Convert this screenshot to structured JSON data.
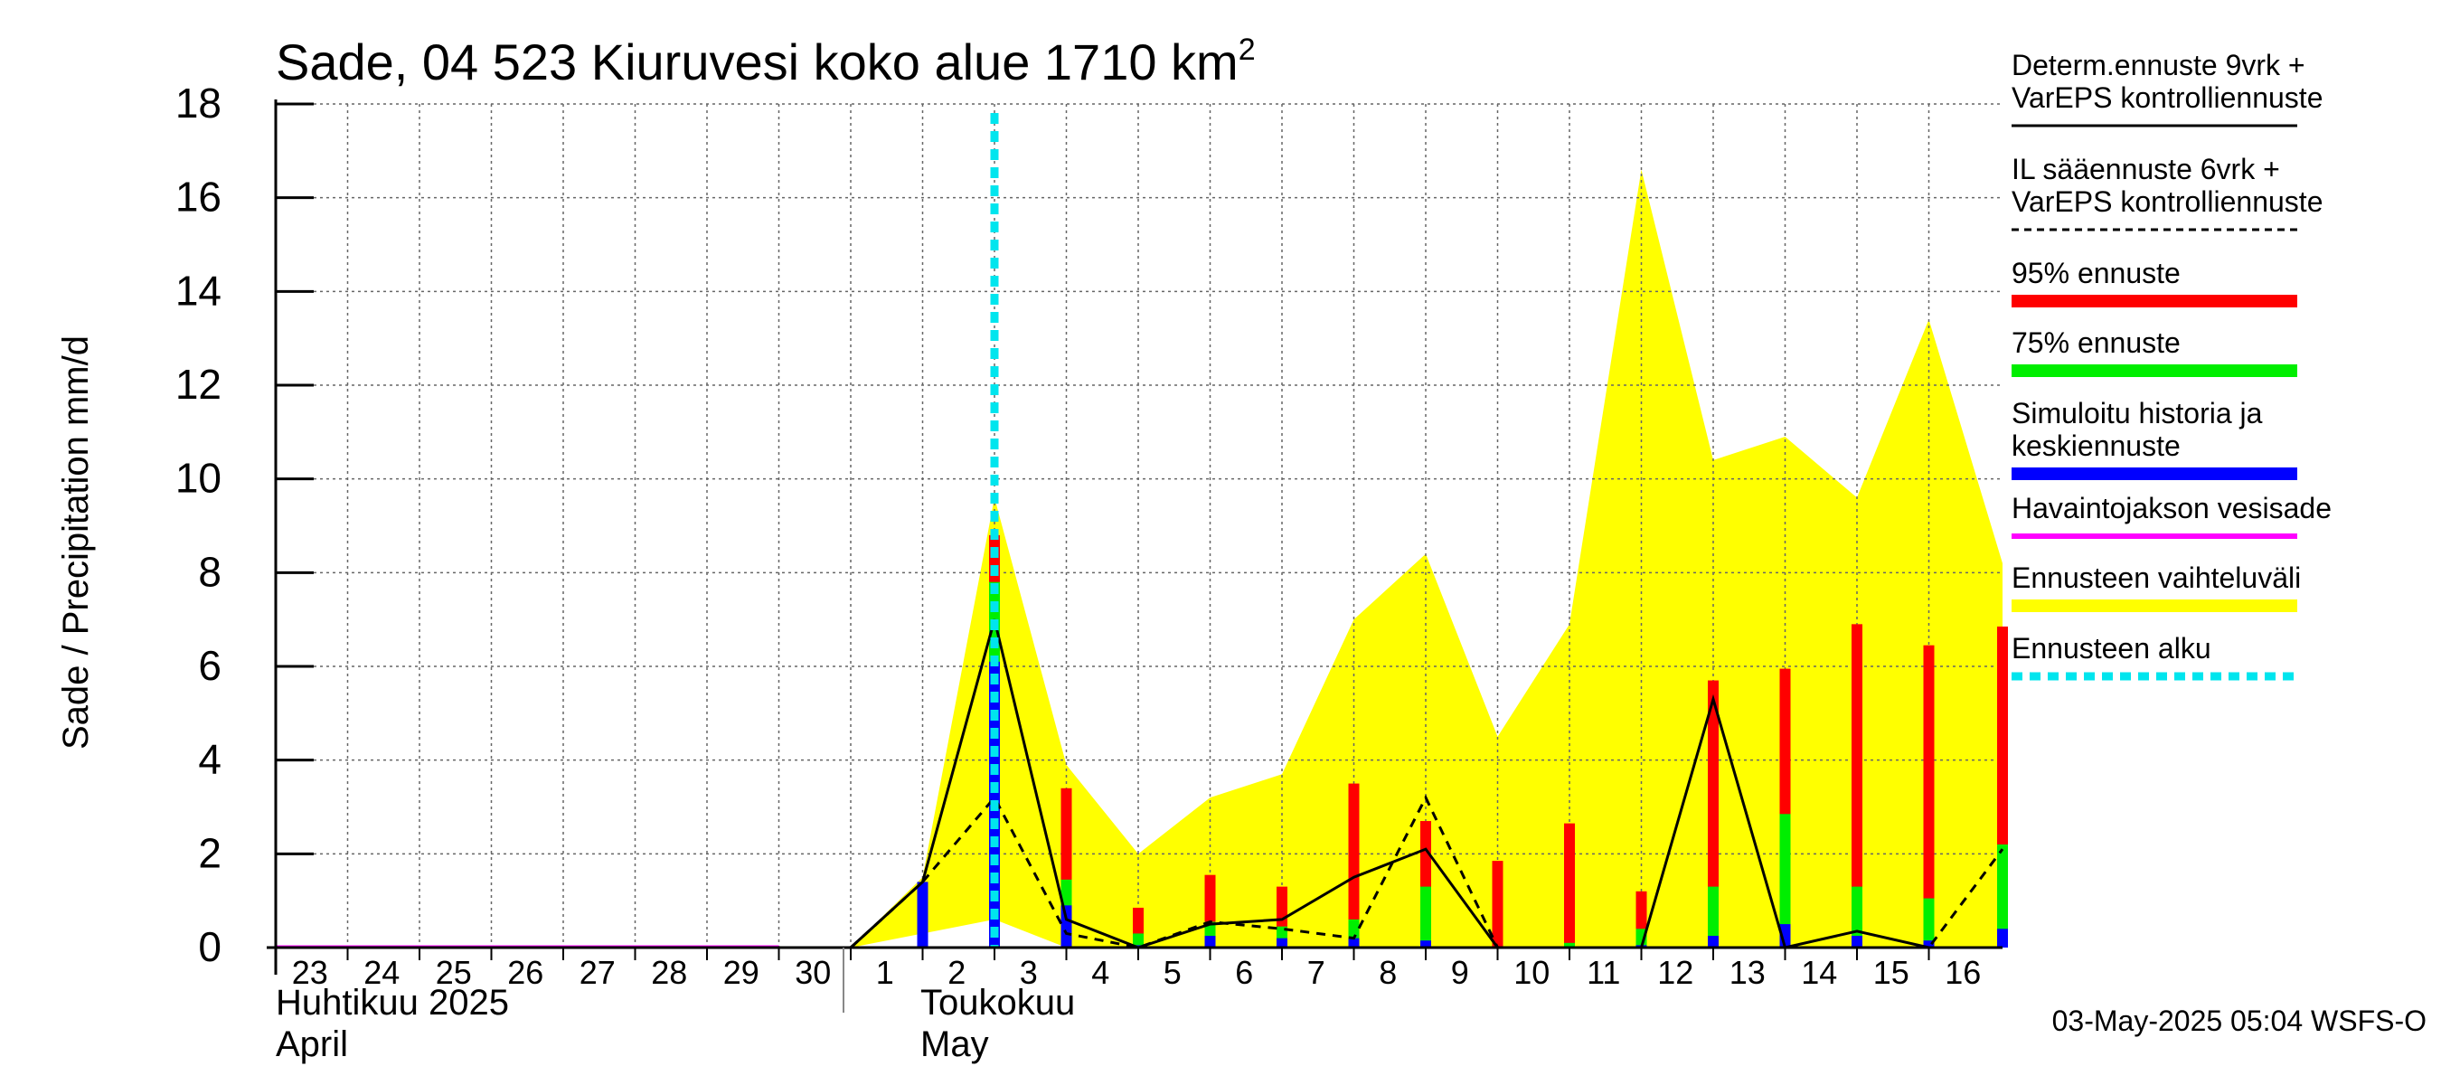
{
  "title_main": "Sade, 04 523 Kiuruvesi koko alue 1710 km",
  "title_sup": "2",
  "ylabel": "Sade / Precipitation   mm/d",
  "footer": "03-May-2025 05:04 WSFS-O",
  "months": [
    {
      "fi": "Huhtikuu  2025",
      "en": "April"
    },
    {
      "fi": "Toukokuu",
      "en": "May"
    }
  ],
  "legend": [
    {
      "label": "Determ.ennuste 9vrk +\nVarEPS kontrolliennuste",
      "color": "#000000",
      "style": "solid"
    },
    {
      "label": "IL sääennuste 6vrk  +\n  VarEPS kontrolliennuste",
      "color": "#000000",
      "style": "dashed"
    },
    {
      "label": "95% ennuste",
      "color": "#ff0000",
      "style": "thick"
    },
    {
      "label": "75% ennuste",
      "color": "#00ee00",
      "style": "thick"
    },
    {
      "label": "Simuloitu historia ja\nkeskiennuste",
      "color": "#0000ff",
      "style": "thick"
    },
    {
      "label": "Havaintojakson vesisade",
      "color": "#ff00ff",
      "style": "medium"
    },
    {
      "label": "Ennusteen vaihteluväli",
      "color": "#ffff00",
      "style": "thick"
    },
    {
      "label": "Ennusteen alku",
      "color": "#00e5ee",
      "style": "dotted"
    }
  ],
  "chart_data": {
    "type": "bar",
    "ylim": [
      0,
      18
    ],
    "yticks": [
      0,
      2,
      4,
      6,
      8,
      10,
      12,
      14,
      16,
      18
    ],
    "x_day_labels": [
      "23",
      "24",
      "25",
      "26",
      "27",
      "28",
      "29",
      "30",
      "1",
      "2",
      "3",
      "4",
      "5",
      "6",
      "7",
      "8",
      "9",
      "10",
      "11",
      "12",
      "13",
      "14",
      "15",
      "16"
    ],
    "forecast_start_day": "3",
    "grid": true,
    "colors": {
      "p95": "#ff0000",
      "p75": "#00ee00",
      "mean": "#0000ff",
      "range": "#ffff00",
      "start": "#00e5ee"
    },
    "range_band": {
      "x": [
        "1",
        "2",
        "3",
        "4",
        "5",
        "6",
        "7",
        "8",
        "9",
        "10",
        "11",
        "12",
        "13",
        "14",
        "15",
        "16",
        "16 end"
      ],
      "lower": [
        0,
        0.3,
        0.6,
        0,
        0,
        0,
        0,
        0,
        0,
        0,
        0,
        0,
        0,
        0,
        0,
        0,
        0
      ],
      "upper": [
        0,
        1.5,
        9.6,
        3.9,
        2.0,
        3.2,
        3.7,
        7.0,
        8.4,
        4.5,
        6.9,
        16.6,
        10.4,
        10.9,
        9.6,
        13.4,
        8.2
      ]
    },
    "bars": {
      "days": [
        "2",
        "3",
        "4",
        "5",
        "6",
        "7",
        "8",
        "9",
        "10",
        "11",
        "12",
        "13",
        "14",
        "15",
        "16",
        "16 end"
      ],
      "p95": [
        1.4,
        8.8,
        3.4,
        0.85,
        1.55,
        1.3,
        3.5,
        2.7,
        1.85,
        2.65,
        1.2,
        5.7,
        5.95,
        6.9,
        6.45,
        6.85
      ],
      "p75": [
        1.4,
        7.8,
        1.45,
        0.3,
        0.55,
        0.45,
        0.6,
        1.3,
        0,
        0.1,
        0.4,
        1.3,
        2.85,
        1.3,
        1.05,
        2.2
      ],
      "mean": [
        1.4,
        6.1,
        0.9,
        0.05,
        0.25,
        0.2,
        0.2,
        0.15,
        0,
        0,
        0.05,
        0.25,
        0.5,
        0.25,
        0.15,
        0.4
      ]
    },
    "determ": {
      "x": [
        "30",
        "1",
        "2",
        "3",
        "4",
        "5",
        "6",
        "7",
        "8",
        "9",
        "10",
        "11",
        "12",
        "13",
        "14",
        "15",
        "16",
        "16 end"
      ],
      "y": [
        0,
        0,
        1.4,
        7.0,
        0.6,
        0,
        0.5,
        0.6,
        1.5,
        2.1,
        0,
        0,
        0,
        5.3,
        0,
        0.35,
        0,
        0
      ]
    },
    "il_forecast": {
      "x": [
        "1",
        "2",
        "3",
        "4",
        "5",
        "6",
        "7",
        "8",
        "9",
        "10",
        "11",
        "12",
        "13",
        "14",
        "15",
        "16",
        "16 end"
      ],
      "y": [
        0,
        1.4,
        3.2,
        0.3,
        0,
        0.55,
        0.4,
        0.2,
        3.2,
        0,
        0,
        0,
        0,
        0,
        0,
        0,
        2.1
      ]
    }
  }
}
